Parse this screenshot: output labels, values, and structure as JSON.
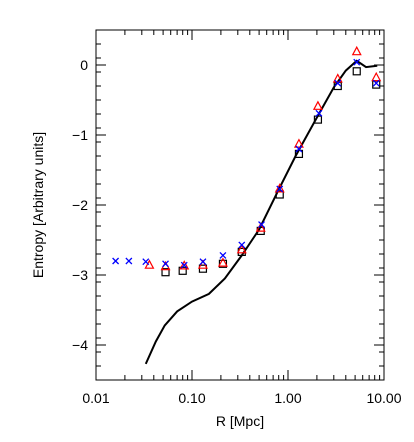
{
  "chart_data": {
    "type": "scatter",
    "xlabel": "R [Mpc]",
    "ylabel": "Entropy [Arbitrary units]",
    "x_scale": "log",
    "xlim": [
      0.01,
      10.0
    ],
    "ylim": [
      -4.5,
      0.5
    ],
    "x_ticks": [
      0.01,
      0.1,
      1.0,
      10.0
    ],
    "x_tick_labels": [
      "0.01",
      "0.10",
      "1.00",
      "10.00"
    ],
    "y_ticks": [
      0,
      -1,
      -2,
      -3,
      -4
    ],
    "y_tick_labels": [
      "0",
      "−1",
      "−2",
      "−3",
      "−4"
    ],
    "grid": false,
    "series": [
      {
        "marker": "line",
        "color": "#000000",
        "x": [
          0.033,
          0.042,
          0.052,
          0.07,
          0.1,
          0.15,
          0.22,
          0.33,
          0.5,
          0.8,
          1.2,
          2.0,
          3.0,
          4.0,
          5.2,
          6.5,
          8.5
        ],
        "y": [
          -4.27,
          -3.95,
          -3.72,
          -3.52,
          -3.38,
          -3.27,
          -3.05,
          -2.72,
          -2.35,
          -1.78,
          -1.3,
          -0.75,
          -0.32,
          -0.08,
          0.06,
          -0.03,
          -0.01
        ]
      },
      {
        "marker": "square",
        "color": "#000000",
        "x": [
          0.053,
          0.08,
          0.13,
          0.21,
          0.33,
          0.52,
          0.82,
          1.3,
          2.05,
          3.3,
          5.2,
          8.3
        ],
        "y": [
          -2.96,
          -2.94,
          -2.91,
          -2.84,
          -2.67,
          -2.37,
          -1.85,
          -1.27,
          -0.78,
          -0.3,
          -0.09,
          -0.28
        ]
      },
      {
        "marker": "triangle",
        "color": "#ff0000",
        "x": [
          0.036,
          0.053,
          0.083,
          0.13,
          0.21,
          0.33,
          0.52,
          0.82,
          1.3,
          2.05,
          3.3,
          5.2,
          8.3
        ],
        "y": [
          -2.86,
          -2.88,
          -2.87,
          -2.86,
          -2.83,
          -2.64,
          -2.33,
          -1.77,
          -1.13,
          -0.59,
          -0.2,
          0.19,
          -0.18
        ]
      },
      {
        "marker": "cross",
        "color": "#0000ff",
        "x": [
          0.016,
          0.022,
          0.033,
          0.053,
          0.083,
          0.13,
          0.21,
          0.33,
          0.53,
          0.82,
          1.3,
          2.1,
          3.3,
          5.2,
          8.3
        ],
        "y": [
          -2.8,
          -2.8,
          -2.81,
          -2.84,
          -2.86,
          -2.81,
          -2.72,
          -2.57,
          -2.28,
          -1.77,
          -1.2,
          -0.69,
          -0.26,
          0.04,
          -0.26
        ]
      }
    ]
  }
}
